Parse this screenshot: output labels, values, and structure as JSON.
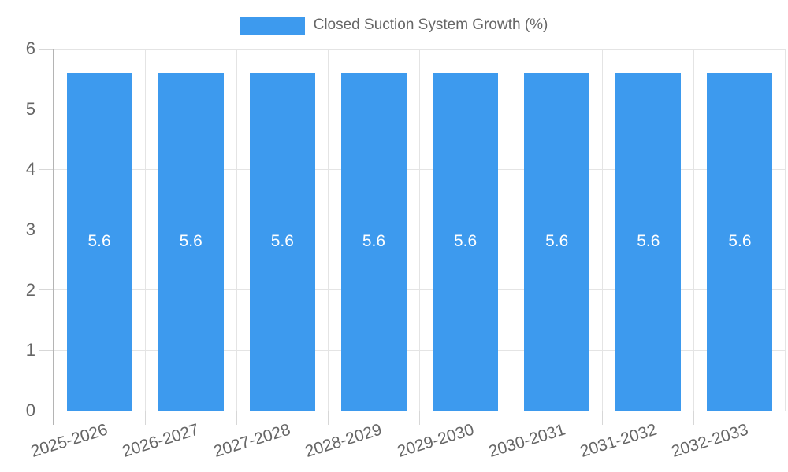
{
  "legend": {
    "label": "Closed Suction System Growth (%)",
    "swatch_color": "#3D9AEE"
  },
  "chart_data": {
    "type": "bar",
    "categories": [
      "2025-2026",
      "2026-2027",
      "2027-2028",
      "2028-2029",
      "2029-2030",
      "2030-2031",
      "2031-2032",
      "2032-2033"
    ],
    "series": [
      {
        "name": "Closed Suction System Growth (%)",
        "color": "#3D9AEE",
        "values": [
          5.6,
          5.6,
          5.6,
          5.6,
          5.6,
          5.6,
          5.6,
          5.6
        ]
      }
    ],
    "bar_value_labels": [
      "5.6",
      "5.6",
      "5.6",
      "5.6",
      "5.6",
      "5.6",
      "5.6",
      "5.6"
    ],
    "xlabel": "",
    "ylabel": "",
    "ylim": [
      0,
      6
    ],
    "y_ticks": [
      0,
      1,
      2,
      3,
      4,
      5,
      6
    ],
    "grid": true,
    "legend_position": "top",
    "x_label_rotation_deg": -17
  },
  "colors": {
    "bar": "#3D9AEE",
    "bar_label": "#FFFFFF",
    "axis_line": "#B4B4B4",
    "gridline": "#E4E4E4",
    "tick": "#D7D7D7",
    "tick_label": "#666666",
    "legend_text": "#666666",
    "background": "#FFFFFF"
  }
}
